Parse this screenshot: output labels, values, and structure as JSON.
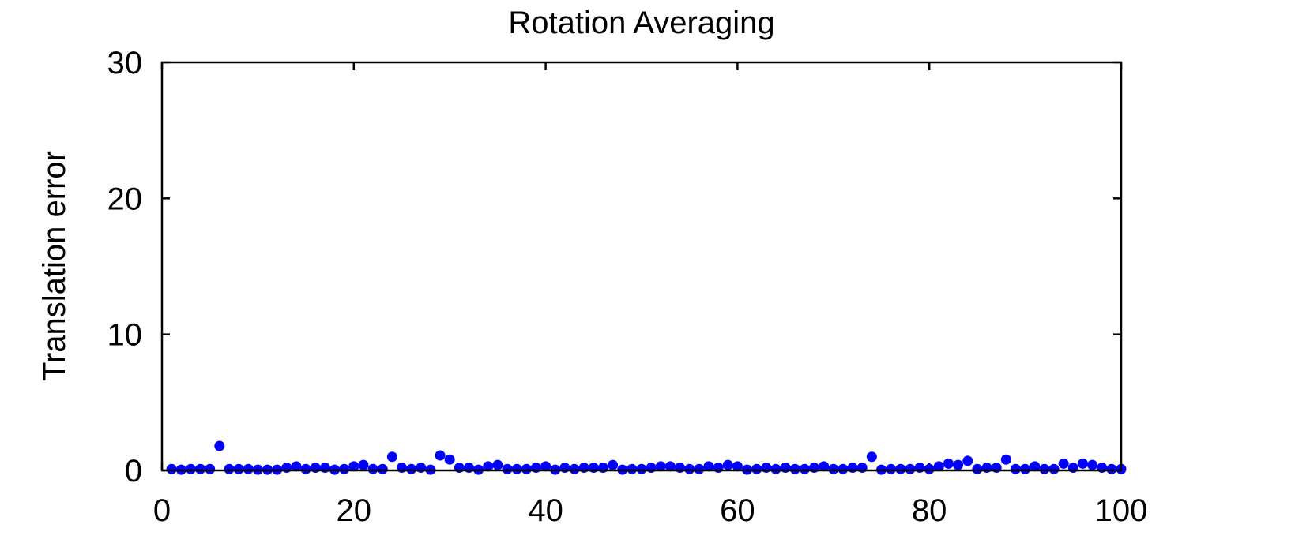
{
  "chart_data": {
    "type": "scatter",
    "title": "Rotation Averaging",
    "xlabel": "",
    "ylabel": "Translation error",
    "xlim": [
      0,
      100
    ],
    "ylim": [
      0,
      30
    ],
    "xticks": [
      0,
      20,
      40,
      60,
      80,
      100
    ],
    "yticks": [
      0,
      10,
      20,
      30
    ],
    "grid": false,
    "marker_color": "#0000ff",
    "series": [
      {
        "x": [
          1,
          2,
          3,
          4,
          5,
          6,
          7,
          8,
          9,
          10,
          11,
          12,
          13,
          14,
          15,
          16,
          17,
          18,
          19,
          20,
          21,
          22,
          23,
          24,
          25,
          26,
          27,
          28,
          29,
          30,
          31,
          32,
          33,
          34,
          35,
          36,
          37,
          38,
          39,
          40,
          41,
          42,
          43,
          44,
          45,
          46,
          47,
          48,
          49,
          50,
          51,
          52,
          53,
          54,
          55,
          56,
          57,
          58,
          59,
          60,
          61,
          62,
          63,
          64,
          65,
          66,
          67,
          68,
          69,
          70,
          71,
          72,
          73,
          74,
          75,
          76,
          77,
          78,
          79,
          80,
          81,
          82,
          83,
          84,
          85,
          86,
          87,
          88,
          89,
          90,
          91,
          92,
          93,
          94,
          95,
          96,
          97,
          98,
          99,
          100
        ],
        "y": [
          0.1,
          0.05,
          0.1,
          0.1,
          0.1,
          1.8,
          0.1,
          0.1,
          0.1,
          0.05,
          0.05,
          0.05,
          0.2,
          0.3,
          0.1,
          0.2,
          0.2,
          0.05,
          0.1,
          0.3,
          0.4,
          0.1,
          0.1,
          1.0,
          0.2,
          0.1,
          0.2,
          0.05,
          1.1,
          0.8,
          0.2,
          0.2,
          0.05,
          0.3,
          0.4,
          0.1,
          0.1,
          0.1,
          0.2,
          0.3,
          0.05,
          0.2,
          0.1,
          0.2,
          0.2,
          0.2,
          0.4,
          0.05,
          0.1,
          0.1,
          0.2,
          0.3,
          0.3,
          0.2,
          0.1,
          0.1,
          0.3,
          0.2,
          0.4,
          0.3,
          0.05,
          0.1,
          0.2,
          0.1,
          0.2,
          0.1,
          0.1,
          0.2,
          0.3,
          0.1,
          0.1,
          0.2,
          0.2,
          1.0,
          0.05,
          0.1,
          0.1,
          0.1,
          0.2,
          0.1,
          0.3,
          0.5,
          0.4,
          0.7,
          0.1,
          0.2,
          0.2,
          0.8,
          0.1,
          0.1,
          0.3,
          0.1,
          0.1,
          0.5,
          0.2,
          0.5,
          0.4,
          0.2,
          0.1,
          0.1
        ]
      }
    ]
  }
}
